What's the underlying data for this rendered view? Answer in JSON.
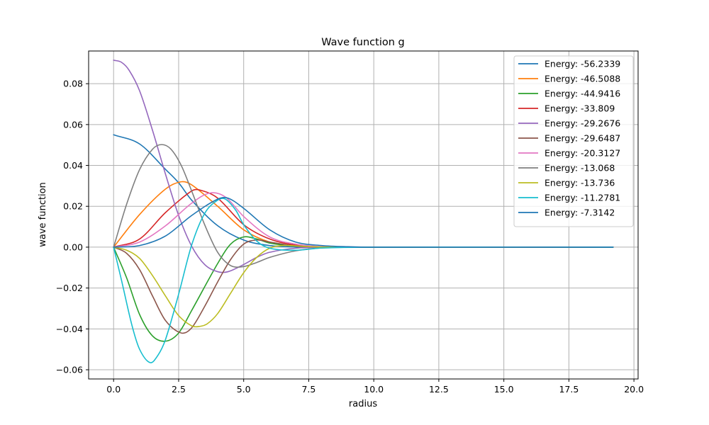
{
  "chart_data": {
    "type": "line",
    "title": "Wave function g",
    "xlabel": "radius",
    "ylabel": "wave function",
    "xlim": [
      -0.96,
      20.16
    ],
    "ylim": [
      -0.0645,
      0.096
    ],
    "xticks": [
      0.0,
      2.5,
      5.0,
      7.5,
      10.0,
      12.5,
      15.0,
      17.5,
      20.0
    ],
    "xtick_labels": [
      "0.0",
      "2.5",
      "5.0",
      "7.5",
      "10.0",
      "12.5",
      "15.0",
      "17.5",
      "20.0"
    ],
    "yticks": [
      -0.06,
      -0.04,
      -0.02,
      0.0,
      0.02,
      0.04,
      0.06,
      0.08
    ],
    "ytick_labels": [
      "−0.06",
      "−0.04",
      "−0.02",
      "0.00",
      "0.02",
      "0.04",
      "0.06",
      "0.08"
    ],
    "grid": true,
    "legend_position": "top-right",
    "series": [
      {
        "name": "Energy: -56.2339",
        "color": "#1f77b4",
        "x": [
          0,
          1,
          2,
          2.5,
          3,
          4,
          5,
          6,
          7,
          8,
          10,
          19.2
        ],
        "y": [
          0.055,
          0.0505,
          0.038,
          0.0315,
          0.023,
          0.0105,
          0.0035,
          0.0008,
          0.0001,
          0,
          0,
          0
        ]
      },
      {
        "name": "Energy: -46.5088",
        "color": "#ff7f0e",
        "x": [
          0,
          1,
          2,
          2.6,
          3,
          4,
          5,
          6,
          7,
          8,
          10,
          19.2
        ],
        "y": [
          0,
          0.016,
          0.0285,
          0.032,
          0.0305,
          0.02,
          0.0085,
          0.0025,
          0.0006,
          0.0001,
          0,
          0
        ]
      },
      {
        "name": "Energy: -44.9416",
        "color": "#2ca02c",
        "x": [
          0,
          0.5,
          1,
          1.5,
          2,
          2.5,
          3,
          4,
          4.5,
          5,
          5.5,
          6,
          7,
          8,
          10,
          19.2
        ],
        "y": [
          0,
          -0.015,
          -0.033,
          -0.0435,
          -0.046,
          -0.042,
          -0.031,
          -0.008,
          0.0015,
          0.005,
          0.004,
          0.002,
          0.0005,
          0.0001,
          0,
          0
        ]
      },
      {
        "name": "Energy: -33.809",
        "color": "#d62728",
        "x": [
          0,
          1,
          2,
          3,
          3.3,
          4,
          5,
          6,
          7,
          8,
          10,
          19.2
        ],
        "y": [
          0,
          0.004,
          0.017,
          0.0275,
          0.028,
          0.024,
          0.011,
          0.004,
          0.001,
          0.0002,
          0,
          0
        ]
      },
      {
        "name": "Energy: -29.2676",
        "color": "#9467bd",
        "x": [
          0,
          0.3,
          0.6,
          1,
          1.5,
          2,
          2.5,
          3,
          3.5,
          4,
          4.4,
          5,
          5.5,
          6,
          7,
          8,
          10,
          19.2
        ],
        "y": [
          0.0915,
          0.0905,
          0.0865,
          0.0765,
          0.057,
          0.0355,
          0.0155,
          0.0005,
          -0.0085,
          -0.012,
          -0.012,
          -0.0085,
          -0.005,
          -0.0025,
          -0.0005,
          -0.0001,
          0,
          0
        ]
      },
      {
        "name": "Energy: -29.6487",
        "color": "#8c564b",
        "x": [
          0,
          0.5,
          1,
          1.5,
          2,
          2.6,
          3,
          3.5,
          4,
          4.5,
          5,
          5.5,
          6,
          7,
          8,
          10,
          19.2
        ],
        "y": [
          0,
          -0.003,
          -0.011,
          -0.024,
          -0.036,
          -0.042,
          -0.0395,
          -0.029,
          -0.017,
          -0.006,
          0.0015,
          0.0035,
          0.0025,
          0.0006,
          0.0001,
          0,
          0
        ]
      },
      {
        "name": "Energy: -20.3127",
        "color": "#e377c2",
        "x": [
          0,
          1,
          2,
          3,
          3.7,
          4.3,
          5,
          6,
          7,
          8,
          10,
          19.2
        ],
        "y": [
          0,
          0.0025,
          0.0105,
          0.0215,
          0.0265,
          0.0245,
          0.015,
          0.005,
          0.0015,
          0.0003,
          0,
          0
        ]
      },
      {
        "name": "Energy: -13.068",
        "color": "#7f7f7f",
        "x": [
          0,
          0.5,
          1,
          1.5,
          1.85,
          2.2,
          2.6,
          3,
          3.5,
          4,
          4.5,
          5,
          5.5,
          6,
          7,
          8,
          10,
          19.2
        ],
        "y": [
          0,
          0.021,
          0.038,
          0.048,
          0.0502,
          0.048,
          0.04,
          0.0275,
          0.011,
          -0.0025,
          -0.009,
          -0.0095,
          -0.0075,
          -0.005,
          -0.0018,
          -0.0004,
          0,
          0
        ]
      },
      {
        "name": "Energy: -13.736",
        "color": "#bcbd22",
        "x": [
          0,
          0.5,
          1,
          1.5,
          2,
          2.5,
          3,
          3.3,
          3.6,
          4,
          4.5,
          5,
          5.5,
          6,
          6.5,
          7,
          8,
          10,
          19.2
        ],
        "y": [
          0,
          -0.0015,
          -0.0055,
          -0.014,
          -0.024,
          -0.0335,
          -0.0385,
          -0.0388,
          -0.0375,
          -0.0325,
          -0.0225,
          -0.0125,
          -0.005,
          -0.0005,
          0.0008,
          0.0006,
          0.0001,
          0,
          0
        ]
      },
      {
        "name": "Energy: -11.2781",
        "color": "#17becf",
        "x": [
          0,
          0.3,
          0.7,
          1,
          1.4,
          1.7,
          2,
          2.5,
          3,
          3.5,
          4,
          4.3,
          4.7,
          5,
          5.5,
          6,
          7,
          8,
          10,
          19.2
        ],
        "y": [
          0,
          -0.016,
          -0.038,
          -0.05,
          -0.0565,
          -0.053,
          -0.045,
          -0.023,
          0.001,
          0.0165,
          0.023,
          0.0235,
          0.018,
          0.011,
          0.003,
          -0.0005,
          -0.0015,
          -0.0004,
          0,
          0
        ]
      },
      {
        "name": "Energy: -7.3142",
        "color": "#1f77b4",
        "x": [
          0,
          1,
          2,
          3,
          4,
          4.4,
          5,
          6,
          7,
          8,
          9,
          10,
          19.2
        ],
        "y": [
          0,
          0.0008,
          0.0055,
          0.0155,
          0.0235,
          0.024,
          0.019,
          0.0085,
          0.0025,
          0.0008,
          0.0002,
          0,
          0
        ]
      }
    ]
  }
}
